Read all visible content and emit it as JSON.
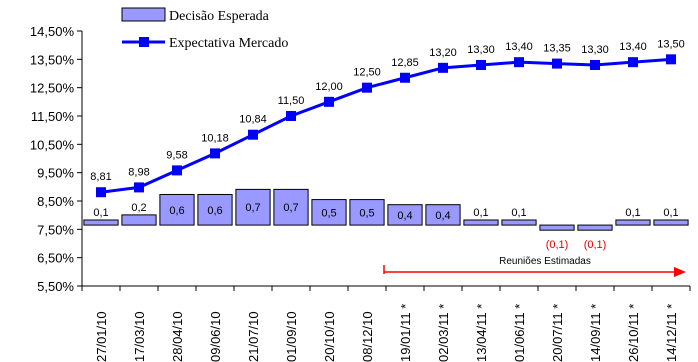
{
  "colors": {
    "bar_fill": "#9999ff",
    "bar_stroke": "#000000",
    "line": "#0000ff",
    "arrow": "#ff0000",
    "negative_label": "#e00000"
  },
  "chart_data": {
    "type": "bar+line",
    "categories": [
      "27/01/10",
      "17/03/10",
      "28/04/10",
      "09/06/10",
      "21/07/10",
      "01/09/10",
      "20/10/10",
      "08/12/10",
      "19/01/11 *",
      "02/03/11 *",
      "13/04/11 *",
      "01/06/11 *",
      "20/07/11 *",
      "14/09/11 *",
      "26/10/11 *",
      "14/12/11 *"
    ],
    "ylim": [
      5.5,
      14.5
    ],
    "yticks": [
      "5,50%",
      "6,50%",
      "7,50%",
      "8,50%",
      "9,50%",
      "10,50%",
      "11,50%",
      "12,50%",
      "13,50%",
      "14,50%"
    ],
    "ytick_values": [
      5.5,
      6.5,
      7.5,
      8.5,
      9.5,
      10.5,
      11.5,
      12.5,
      13.5,
      14.5
    ],
    "bar_baseline": 7.65,
    "bar_scale": 1.8,
    "series": [
      {
        "name": "Decisão Esperada",
        "kind": "bar",
        "values": [
          0.1,
          0.2,
          0.6,
          0.6,
          0.7,
          0.7,
          0.5,
          0.5,
          0.4,
          0.4,
          0.1,
          0.1,
          -0.1,
          -0.1,
          0.1,
          0.1
        ],
        "labels": [
          "0,1",
          "0,2",
          "0,6",
          "0,6",
          "0,7",
          "0,7",
          "0,5",
          "0,5",
          "0,4",
          "0,4",
          "0,1",
          "0,1",
          "(0,1)",
          "(0,1)",
          "0,1",
          "0,1"
        ]
      },
      {
        "name": "Expectativa Mercado",
        "kind": "line",
        "values": [
          8.81,
          8.98,
          9.58,
          10.18,
          10.84,
          11.5,
          12.0,
          12.5,
          12.85,
          13.2,
          13.3,
          13.4,
          13.35,
          13.3,
          13.4,
          13.5
        ],
        "labels": [
          "8,81",
          "8,98",
          "9,58",
          "10,18",
          "10,84",
          "11,50",
          "12,00",
          "12,50",
          "12,85",
          "13,20",
          "13,30",
          "13,40",
          "13,35",
          "13,30",
          "13,40",
          "13,50"
        ]
      }
    ],
    "legend": {
      "placement": "top-left",
      "items": [
        "Decisão Esperada",
        "Expectativa Mercado"
      ]
    },
    "annotation": {
      "text": "Reuniões Estimadas",
      "from_category": "19/01/11 *",
      "to_category": "14/12/11 *"
    },
    "grid": false
  }
}
